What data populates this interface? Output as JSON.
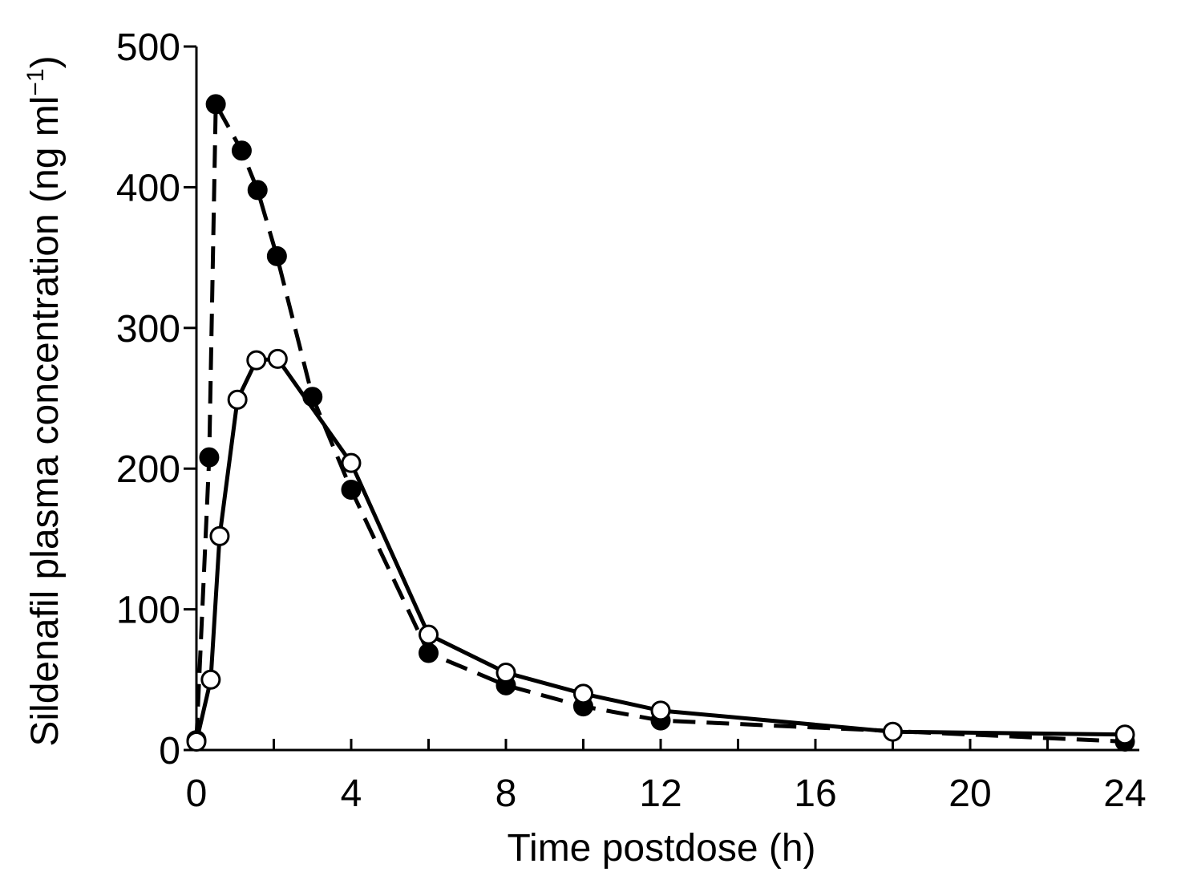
{
  "chart_data": {
    "type": "line",
    "xlabel": "Time postdose (h)",
    "ylabel": [
      "Sildenafil plasma concentration (ng ml",
      "−1",
      ")"
    ],
    "xlim": [
      0,
      24
    ],
    "xticks": [
      0,
      4,
      8,
      12,
      16,
      20,
      24
    ],
    "xminorticks": [
      2,
      6,
      10,
      14,
      18,
      22
    ],
    "ylim": [
      0,
      500
    ],
    "yticks": [
      0,
      100,
      200,
      300,
      400,
      500
    ],
    "series": [
      {
        "color": "#000000",
        "marker_fill": "#000000",
        "linestyle": "dashed",
        "x": [
          0,
          0.33,
          0.5,
          1.17,
          1.58,
          2.08,
          3,
          4,
          6,
          8,
          10,
          12,
          24
        ],
        "values": [
          7,
          208,
          459,
          426,
          398,
          351,
          251,
          185,
          69,
          46,
          31,
          21,
          6
        ]
      },
      {
        "color": "#000000",
        "marker_fill": "#ffffff",
        "linestyle": "solid",
        "x": [
          0,
          0.37,
          0.6,
          1.06,
          1.55,
          2.1,
          4,
          6,
          8,
          10,
          12,
          18,
          24
        ],
        "values": [
          6,
          50,
          152,
          249,
          277,
          278,
          204,
          82,
          55,
          40,
          28,
          13,
          11
        ]
      }
    ]
  }
}
